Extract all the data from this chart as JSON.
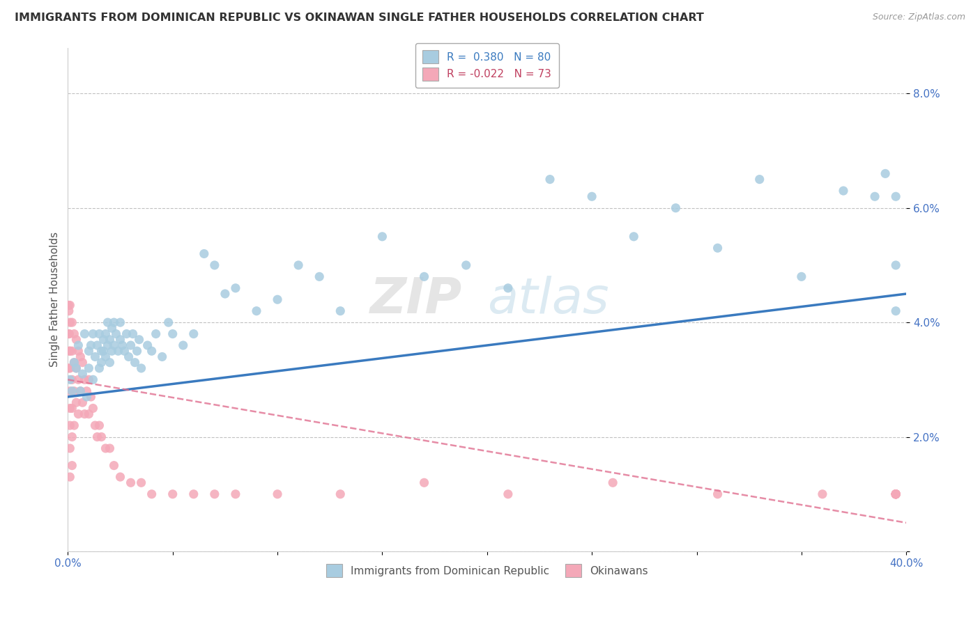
{
  "title": "IMMIGRANTS FROM DOMINICAN REPUBLIC VS OKINAWAN SINGLE FATHER HOUSEHOLDS CORRELATION CHART",
  "source": "Source: ZipAtlas.com",
  "ylabel": "Single Father Households",
  "xlim": [
    0.0,
    0.4
  ],
  "ylim": [
    0.0,
    0.088
  ],
  "legend_blue_r": "0.380",
  "legend_blue_n": "80",
  "legend_pink_r": "-0.022",
  "legend_pink_n": "73",
  "blue_color": "#a8cce0",
  "pink_color": "#f4a8b8",
  "blue_line_color": "#3a7abf",
  "pink_line_color": "#e07090",
  "watermark_zip": "ZIP",
  "watermark_atlas": "atlas",
  "bg_color": "#ffffff",
  "grid_color": "#bbbbbb",
  "blue_trend_x": [
    0.0,
    0.4
  ],
  "blue_trend_y": [
    0.027,
    0.045
  ],
  "pink_trend_x": [
    0.0,
    0.4
  ],
  "pink_trend_y": [
    0.03,
    0.005
  ],
  "blue_scatter_x": [
    0.001,
    0.002,
    0.003,
    0.004,
    0.005,
    0.006,
    0.007,
    0.008,
    0.009,
    0.01,
    0.01,
    0.011,
    0.012,
    0.012,
    0.013,
    0.014,
    0.015,
    0.015,
    0.016,
    0.016,
    0.017,
    0.017,
    0.018,
    0.018,
    0.019,
    0.019,
    0.02,
    0.02,
    0.021,
    0.021,
    0.022,
    0.022,
    0.023,
    0.024,
    0.025,
    0.025,
    0.026,
    0.027,
    0.028,
    0.029,
    0.03,
    0.031,
    0.032,
    0.033,
    0.034,
    0.035,
    0.038,
    0.04,
    0.042,
    0.045,
    0.048,
    0.05,
    0.055,
    0.06,
    0.065,
    0.07,
    0.075,
    0.08,
    0.09,
    0.1,
    0.11,
    0.12,
    0.13,
    0.15,
    0.17,
    0.19,
    0.21,
    0.23,
    0.25,
    0.27,
    0.29,
    0.31,
    0.33,
    0.35,
    0.37,
    0.385,
    0.39,
    0.395,
    0.395,
    0.395
  ],
  "blue_scatter_y": [
    0.03,
    0.028,
    0.033,
    0.032,
    0.036,
    0.028,
    0.031,
    0.038,
    0.027,
    0.032,
    0.035,
    0.036,
    0.03,
    0.038,
    0.034,
    0.036,
    0.038,
    0.032,
    0.035,
    0.033,
    0.037,
    0.035,
    0.034,
    0.038,
    0.036,
    0.04,
    0.033,
    0.037,
    0.035,
    0.039,
    0.036,
    0.04,
    0.038,
    0.035,
    0.037,
    0.04,
    0.036,
    0.035,
    0.038,
    0.034,
    0.036,
    0.038,
    0.033,
    0.035,
    0.037,
    0.032,
    0.036,
    0.035,
    0.038,
    0.034,
    0.04,
    0.038,
    0.036,
    0.038,
    0.052,
    0.05,
    0.045,
    0.046,
    0.042,
    0.044,
    0.05,
    0.048,
    0.042,
    0.055,
    0.048,
    0.05,
    0.046,
    0.065,
    0.062,
    0.055,
    0.06,
    0.053,
    0.065,
    0.048,
    0.063,
    0.062,
    0.066,
    0.05,
    0.062,
    0.042
  ],
  "pink_scatter_x": [
    0.0003,
    0.0003,
    0.0005,
    0.0005,
    0.0007,
    0.0008,
    0.001,
    0.001,
    0.001,
    0.001,
    0.001,
    0.001,
    0.001,
    0.001,
    0.001,
    0.002,
    0.002,
    0.002,
    0.002,
    0.002,
    0.002,
    0.003,
    0.003,
    0.003,
    0.003,
    0.004,
    0.004,
    0.004,
    0.005,
    0.005,
    0.005,
    0.006,
    0.006,
    0.007,
    0.007,
    0.008,
    0.008,
    0.009,
    0.01,
    0.01,
    0.011,
    0.012,
    0.013,
    0.014,
    0.015,
    0.016,
    0.018,
    0.02,
    0.022,
    0.025,
    0.03,
    0.035,
    0.04,
    0.05,
    0.06,
    0.07,
    0.08,
    0.1,
    0.13,
    0.17,
    0.21,
    0.26,
    0.31,
    0.36,
    0.395,
    0.395,
    0.395,
    0.395,
    0.395,
    0.395,
    0.395,
    0.395,
    0.395
  ],
  "pink_scatter_y": [
    0.043,
    0.038,
    0.042,
    0.032,
    0.038,
    0.035,
    0.043,
    0.04,
    0.035,
    0.032,
    0.028,
    0.025,
    0.022,
    0.018,
    0.013,
    0.04,
    0.035,
    0.03,
    0.025,
    0.02,
    0.015,
    0.038,
    0.033,
    0.028,
    0.022,
    0.037,
    0.032,
    0.026,
    0.035,
    0.03,
    0.024,
    0.034,
    0.028,
    0.033,
    0.026,
    0.03,
    0.024,
    0.028,
    0.03,
    0.024,
    0.027,
    0.025,
    0.022,
    0.02,
    0.022,
    0.02,
    0.018,
    0.018,
    0.015,
    0.013,
    0.012,
    0.012,
    0.01,
    0.01,
    0.01,
    0.01,
    0.01,
    0.01,
    0.01,
    0.012,
    0.01,
    0.012,
    0.01,
    0.01,
    0.01,
    0.01,
    0.01,
    0.01,
    0.01,
    0.01,
    0.01,
    0.01,
    0.01
  ]
}
